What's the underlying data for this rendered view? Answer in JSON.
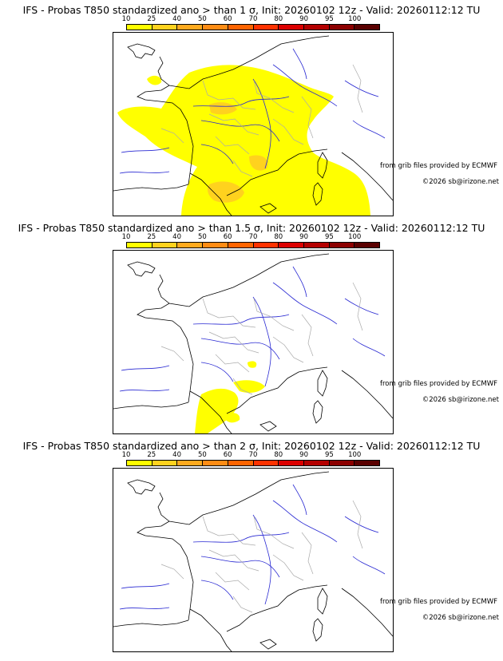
{
  "panels": [
    {
      "title": "IFS - Probas T850  standardized ano > than 1 σ, Init: 20260102 12z - Valid: 20260112:12 TU",
      "source_credit": "from grib files provided by ECMWF",
      "copyright": "©2026 sb@irizone.net",
      "probability_coverage": "widespread"
    },
    {
      "title": "IFS - Probas T850  standardized ano > than 1.5 σ, Init: 20260102 12z - Valid: 20260112:12 TU",
      "source_credit": "from grib files provided by ECMWF",
      "copyright": "©2026 sb@irizone.net",
      "probability_coverage": "south-only"
    },
    {
      "title": "IFS - Probas T850  standardized ano > than 2 σ, Init: 20260102 12z - Valid: 20260112:12 TU",
      "source_credit": "from grib files provided by ECMWF",
      "copyright": "©2026 sb@irizone.net",
      "probability_coverage": "none"
    }
  ],
  "colorscale": {
    "labels": [
      "10",
      "25",
      "40",
      "50",
      "60",
      "70",
      "80",
      "90",
      "95",
      "100"
    ],
    "colors": [
      "#ffff00",
      "#ffd21e",
      "#ffaa1e",
      "#ff8c14",
      "#ff6400",
      "#ff3200",
      "#dc0000",
      "#b40000",
      "#8c0000",
      "#5a0000"
    ]
  },
  "map_colors": {
    "coast": "#000000",
    "rivers": "#2828d2",
    "borders": "#aaaaaa",
    "prob_low": "#ffff00",
    "prob_mid": "#ffd21e"
  }
}
